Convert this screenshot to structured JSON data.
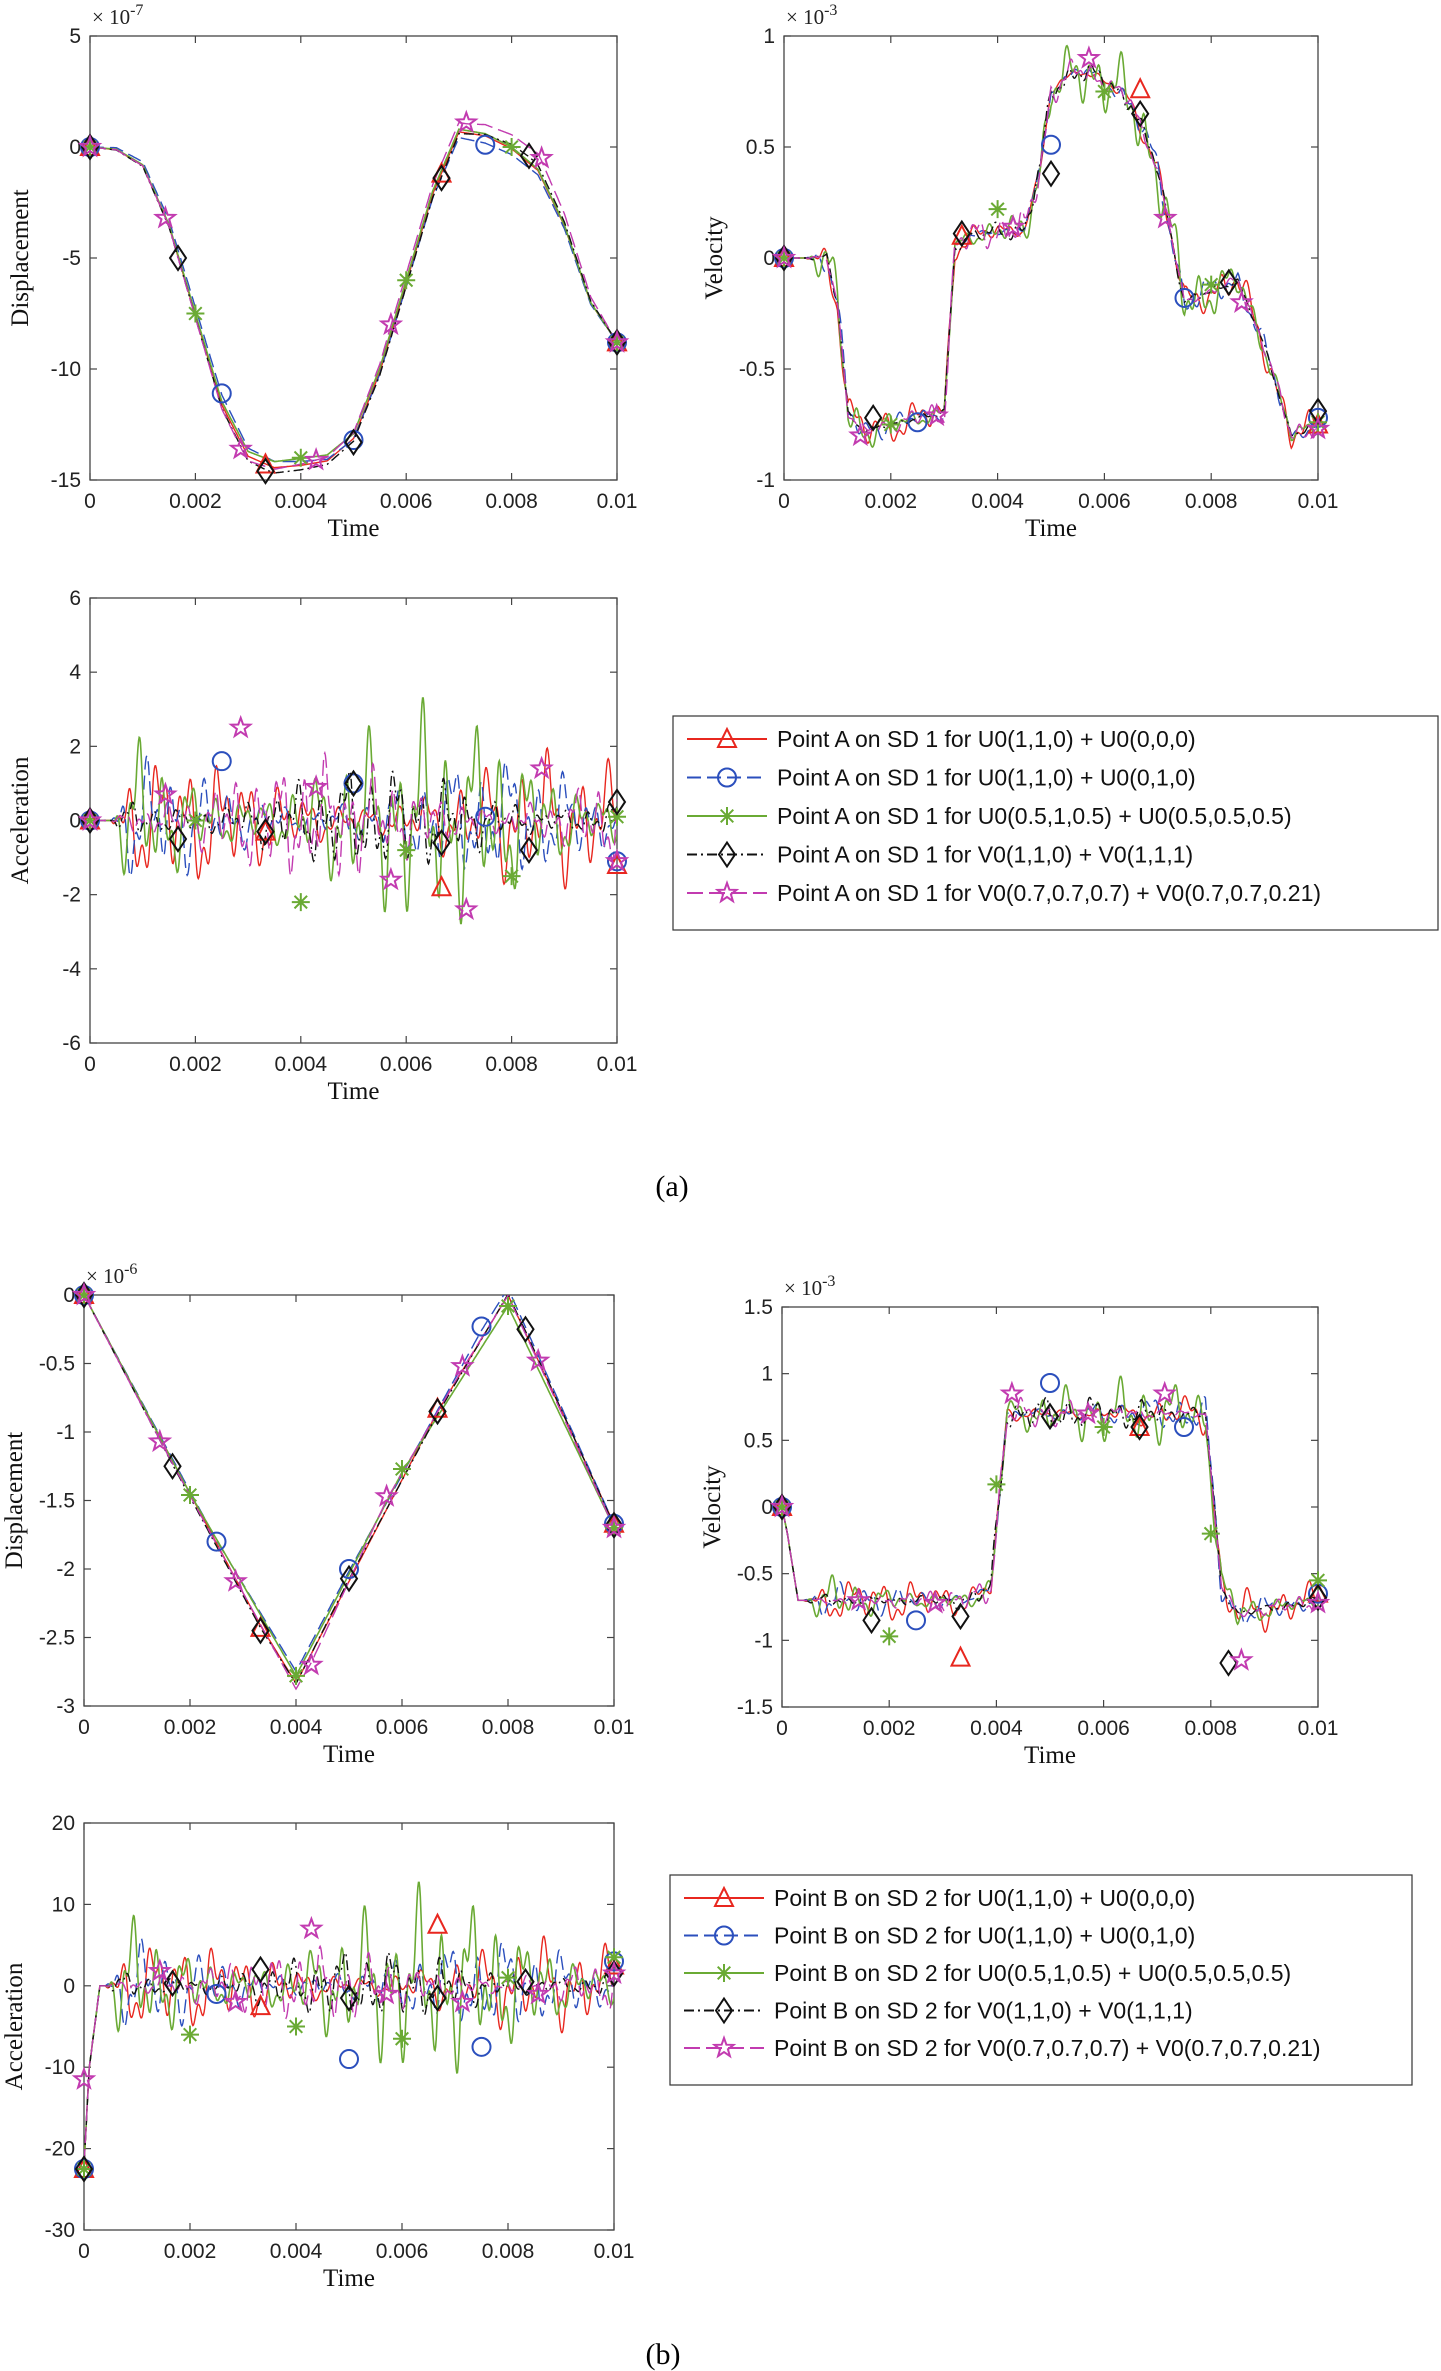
{
  "figure": {
    "caption_a": "(a)",
    "caption_b": "(b)"
  },
  "chart_data": [
    {
      "id": "a-disp",
      "type": "line",
      "panel": "a",
      "xlabel": "Time",
      "ylabel": "Displacement",
      "xlim": [
        0,
        0.01
      ],
      "ylim": [
        -15,
        5
      ],
      "xticks": [
        0,
        0.002,
        0.004,
        0.006,
        0.008,
        0.01
      ],
      "xtick_labels": [
        "0",
        "0.002",
        "0.004",
        "0.006",
        "0.008",
        "0.01"
      ],
      "yticks": [
        5,
        0,
        -5,
        -10,
        -15
      ],
      "ytick_labels": [
        "5",
        "0",
        "-5",
        "-10",
        "-15"
      ],
      "exponent": "× 10^-7",
      "base": {
        "x": [
          0,
          0.0005,
          0.001,
          0.0015,
          0.002,
          0.0025,
          0.003,
          0.0035,
          0.004,
          0.0045,
          0.005,
          0.0055,
          0.006,
          0.0065,
          0.007,
          0.0075,
          0.008,
          0.0085,
          0.009,
          0.0095,
          0.01
        ],
        "y": [
          0,
          -0.1,
          -0.8,
          -3.5,
          -7.5,
          -11.5,
          -13.8,
          -14.3,
          -14.2,
          -14.0,
          -13.0,
          -10.0,
          -6.0,
          -2.0,
          0.8,
          0.6,
          0,
          -1.0,
          -3.5,
          -7.0,
          -8.8
        ]
      },
      "noise": [
        0,
        0,
        0,
        0,
        0
      ],
      "series": [
        {
          "name": "U0(1,1,0)+U0(0,0,0)",
          "markers_x": [
            0,
            0.00333,
            0.00667,
            0.01
          ],
          "markers_y": [
            0,
            -14.3,
            -1.2,
            -8.8
          ]
        },
        {
          "name": "U0(1,1,0)+U0(0,1,0)",
          "markers_x": [
            0,
            0.0025,
            0.005,
            0.0075,
            0.01
          ],
          "markers_y": [
            0,
            -11.1,
            -13.2,
            0.1,
            -8.8
          ]
        },
        {
          "name": "U0(0.5,1,0.5)+U0(0.5,0.5,0.5)",
          "markers_x": [
            0,
            0.002,
            0.004,
            0.006,
            0.008,
            0.01
          ],
          "markers_y": [
            0,
            -7.5,
            -14.0,
            -6.0,
            0,
            -8.8
          ]
        },
        {
          "name": "V0(1,1,0)+V0(1,1,1)",
          "markers_x": [
            0,
            0.00167,
            0.00333,
            0.005,
            0.00667,
            0.00833,
            0.01
          ],
          "markers_y": [
            0,
            -5.0,
            -14.6,
            -13.3,
            -1.4,
            -0.4,
            -8.8
          ]
        },
        {
          "name": "V0(0.7,0.7,0.7)+V0(0.7,0.7,0.21)",
          "markers_x": [
            0,
            0.00143,
            0.00286,
            0.00429,
            0.00571,
            0.00714,
            0.00857,
            0.01
          ],
          "markers_y": [
            0,
            -3.2,
            -13.6,
            -14.1,
            -8.0,
            1.1,
            -0.5,
            -8.8
          ]
        }
      ]
    },
    {
      "id": "a-vel",
      "type": "line",
      "panel": "a",
      "xlabel": "Time",
      "ylabel": "Velocity",
      "xlim": [
        0,
        0.01
      ],
      "ylim": [
        -1,
        1
      ],
      "xticks": [
        0,
        0.002,
        0.004,
        0.006,
        0.008,
        0.01
      ],
      "xtick_labels": [
        "0",
        "0.002",
        "0.004",
        "0.006",
        "0.008",
        "0.01"
      ],
      "yticks": [
        1,
        0.5,
        0,
        -0.5,
        -1
      ],
      "ytick_labels": [
        "1",
        "0.5",
        "0",
        "-0.5",
        "-1"
      ],
      "exponent": "× 10^-3",
      "base": {
        "x": [
          0,
          0.0008,
          0.001,
          0.0012,
          0.0015,
          0.002,
          0.0025,
          0.003,
          0.0032,
          0.0035,
          0.004,
          0.0045,
          0.0048,
          0.005,
          0.0055,
          0.006,
          0.0065,
          0.007,
          0.0075,
          0.008,
          0.0085,
          0.009,
          0.0095,
          0.01
        ],
        "y": [
          0,
          0,
          -0.2,
          -0.7,
          -0.78,
          -0.75,
          -0.72,
          -0.7,
          0.05,
          0.1,
          0.12,
          0.13,
          0.4,
          0.75,
          0.85,
          0.8,
          0.7,
          0.4,
          -0.2,
          -0.15,
          -0.1,
          -0.4,
          -0.8,
          -0.75
        ]
      },
      "noise": [
        0.08,
        0.06,
        0.15,
        0.05,
        0.07
      ],
      "series": [
        {
          "name": "U0(1,1,0)+U0(0,0,0)",
          "markers_x": [
            0,
            0.00333,
            0.00667,
            0.01
          ],
          "markers_y": [
            0,
            0.1,
            0.76,
            -0.75
          ]
        },
        {
          "name": "U0(1,1,0)+U0(0,1,0)",
          "markers_x": [
            0,
            0.0025,
            0.005,
            0.0075,
            0.01
          ],
          "markers_y": [
            0,
            -0.74,
            0.51,
            -0.18,
            -0.72
          ]
        },
        {
          "name": "U0(0.5,1,0.5)+U0(0.5,0.5,0.5)",
          "markers_x": [
            0,
            0.002,
            0.004,
            0.006,
            0.008,
            0.01
          ],
          "markers_y": [
            0,
            -0.75,
            0.22,
            0.75,
            -0.12,
            -0.74
          ]
        },
        {
          "name": "V0(1,1,0)+V0(1,1,1)",
          "markers_x": [
            0,
            0.00167,
            0.00333,
            0.005,
            0.00667,
            0.00833,
            0.01
          ],
          "markers_y": [
            0,
            -0.72,
            0.11,
            0.38,
            0.65,
            -0.11,
            -0.69
          ]
        },
        {
          "name": "V0(0.7,0.7,0.7)+V0(0.7,0.7,0.21)",
          "markers_x": [
            0,
            0.00143,
            0.00286,
            0.00429,
            0.00571,
            0.00714,
            0.00857,
            0.01
          ],
          "markers_y": [
            0,
            -0.8,
            -0.71,
            0.14,
            0.9,
            0.18,
            -0.2,
            -0.77
          ]
        }
      ]
    },
    {
      "id": "a-acc",
      "type": "line",
      "panel": "a",
      "xlabel": "Time",
      "ylabel": "Acceleration",
      "xlim": [
        0,
        0.01
      ],
      "ylim": [
        -6,
        6
      ],
      "xticks": [
        0,
        0.002,
        0.004,
        0.006,
        0.008,
        0.01
      ],
      "xtick_labels": [
        "0",
        "0.002",
        "0.004",
        "0.006",
        "0.008",
        "0.01"
      ],
      "yticks": [
        6,
        4,
        2,
        0,
        -2,
        -4,
        -6
      ],
      "ytick_labels": [
        "6",
        "4",
        "2",
        "0",
        "-2",
        "-4",
        "-6"
      ],
      "exponent": "",
      "base": {
        "x": [
          0,
          0.0007,
          0.001,
          0.01
        ],
        "y": [
          0,
          0,
          0,
          0
        ]
      },
      "noise": [
        1.6,
        1.5,
        2.6,
        1.3,
        1.5
      ],
      "series": [
        {
          "name": "U0(1,1,0)+U0(0,0,0)",
          "markers_x": [
            0,
            0.00333,
            0.00667,
            0.01
          ],
          "markers_y": [
            0,
            -0.3,
            -1.8,
            -1.2
          ]
        },
        {
          "name": "U0(1,1,0)+U0(0,1,0)",
          "markers_x": [
            0,
            0.0025,
            0.005,
            0.0075,
            0.01
          ],
          "markers_y": [
            0,
            1.6,
            1.0,
            0.1,
            -1.1
          ]
        },
        {
          "name": "U0(0.5,1,0.5)+U0(0.5,0.5,0.5)",
          "markers_x": [
            0,
            0.002,
            0.004,
            0.006,
            0.008,
            0.01
          ],
          "markers_y": [
            0,
            0,
            -2.2,
            -0.8,
            -1.5,
            0.1
          ]
        },
        {
          "name": "V0(1,1,0)+V0(1,1,1)",
          "markers_x": [
            0,
            0.00167,
            0.00333,
            0.005,
            0.00667,
            0.00833,
            0.01
          ],
          "markers_y": [
            0,
            -0.5,
            -0.3,
            1.0,
            -0.6,
            -0.8,
            0.5
          ]
        },
        {
          "name": "V0(0.7,0.7,0.7)+V0(0.7,0.7,0.21)",
          "markers_x": [
            0,
            0.00143,
            0.00286,
            0.00429,
            0.00571,
            0.00714,
            0.00857,
            0.01
          ],
          "markers_y": [
            0,
            0.7,
            2.5,
            0.9,
            -1.6,
            -2.4,
            1.4,
            -1.1
          ]
        }
      ]
    },
    {
      "id": "b-disp",
      "type": "line",
      "panel": "b",
      "xlabel": "Time",
      "ylabel": "Displacement",
      "xlim": [
        0,
        0.01
      ],
      "ylim": [
        -3,
        0
      ],
      "xticks": [
        0,
        0.002,
        0.004,
        0.006,
        0.008,
        0.01
      ],
      "xtick_labels": [
        "0",
        "0.002",
        "0.004",
        "0.006",
        "0.008",
        "0.01"
      ],
      "yticks": [
        0,
        -0.5,
        -1,
        -1.5,
        -2,
        -2.5,
        -3
      ],
      "ytick_labels": [
        "0",
        "-0.5",
        "-1",
        "-1.5",
        "-2",
        "-2.5",
        "-3"
      ],
      "exponent": "× 10^-6",
      "base": {
        "x": [
          0,
          0.004,
          0.008,
          0.01
        ],
        "y": [
          0,
          -2.78,
          -0.08,
          -1.68
        ]
      },
      "noise": [
        0,
        0,
        0,
        0,
        0
      ],
      "series": [
        {
          "name": "U0(1,1,0)+U0(0,0,0)",
          "markers_x": [
            0,
            0.00333,
            0.00667,
            0.01
          ],
          "markers_y": [
            0,
            -2.43,
            -0.83,
            -1.67
          ]
        },
        {
          "name": "U0(1,1,0)+U0(0,1,0)",
          "markers_x": [
            0,
            0.0025,
            0.005,
            0.0075,
            0.01
          ],
          "markers_y": [
            0,
            -1.8,
            -2.0,
            -0.23,
            -1.67
          ]
        },
        {
          "name": "U0(0.5,1,0.5)+U0(0.5,0.5,0.5)",
          "markers_x": [
            0,
            0.002,
            0.004,
            0.006,
            0.008,
            0.01
          ],
          "markers_y": [
            0,
            -1.46,
            -2.78,
            -1.27,
            -0.08,
            -1.7
          ]
        },
        {
          "name": "V0(1,1,0)+V0(1,1,1)",
          "markers_x": [
            0,
            0.00167,
            0.00333,
            0.005,
            0.00667,
            0.00833,
            0.01
          ],
          "markers_y": [
            0,
            -1.25,
            -2.45,
            -2.07,
            -0.85,
            -0.25,
            -1.68
          ]
        },
        {
          "name": "V0(0.7,0.7,0.7)+V0(0.7,0.7,0.21)",
          "markers_x": [
            0,
            0.00143,
            0.00286,
            0.00429,
            0.00571,
            0.00714,
            0.00857,
            0.01
          ],
          "markers_y": [
            0,
            -1.07,
            -2.09,
            -2.7,
            -1.47,
            -0.52,
            -0.48,
            -1.7
          ]
        }
      ]
    },
    {
      "id": "b-vel",
      "type": "line",
      "panel": "b",
      "xlabel": "Time",
      "ylabel": "Velocity",
      "xlim": [
        0,
        0.01
      ],
      "ylim": [
        -1.5,
        1.5
      ],
      "xticks": [
        0,
        0.002,
        0.004,
        0.006,
        0.008,
        0.01
      ],
      "xtick_labels": [
        "0",
        "0.002",
        "0.004",
        "0.006",
        "0.008",
        "0.01"
      ],
      "yticks": [
        1.5,
        1,
        0.5,
        0,
        -0.5,
        -1,
        -1.5
      ],
      "ytick_labels": [
        "1.5",
        "1",
        "0.5",
        "0",
        "-0.5",
        "-1",
        "-1.5"
      ],
      "exponent": "× 10^-3",
      "base": {
        "x": [
          0,
          0.0001,
          0.0003,
          0.0035,
          0.0039,
          0.0042,
          0.0079,
          0.0082,
          0.0085,
          0.01
        ],
        "y": [
          0,
          -0.2,
          -0.7,
          -0.7,
          -0.6,
          0.7,
          0.7,
          -0.6,
          -0.8,
          -0.7
        ]
      },
      "noise": [
        0.15,
        0.12,
        0.22,
        0.12,
        0.1
      ],
      "series": [
        {
          "name": "U0(1,1,0)+U0(0,0,0)",
          "markers_x": [
            0,
            0.00333,
            0.00667,
            0.01
          ],
          "markers_y": [
            0,
            -1.13,
            0.6,
            -0.65
          ]
        },
        {
          "name": "U0(1,1,0)+U0(0,1,0)",
          "markers_x": [
            0,
            0.0025,
            0.005,
            0.0075,
            0.01
          ],
          "markers_y": [
            0,
            -0.85,
            0.93,
            0.6,
            -0.65
          ]
        },
        {
          "name": "U0(0.5,1,0.5)+U0(0.5,0.5,0.5)",
          "markers_x": [
            0,
            0.002,
            0.004,
            0.006,
            0.008,
            0.01
          ],
          "markers_y": [
            0,
            -0.97,
            0.17,
            0.6,
            -0.2,
            -0.55
          ]
        },
        {
          "name": "V0(1,1,0)+V0(1,1,1)",
          "markers_x": [
            0,
            0.00167,
            0.00333,
            0.005,
            0.00667,
            0.00833,
            0.01
          ],
          "markers_y": [
            0,
            -0.85,
            -0.82,
            0.68,
            0.6,
            -1.17,
            -0.68
          ]
        },
        {
          "name": "V0(0.7,0.7,0.7)+V0(0.7,0.7,0.21)",
          "markers_x": [
            0,
            0.00143,
            0.00286,
            0.00429,
            0.00571,
            0.00714,
            0.00857,
            0.01
          ],
          "markers_y": [
            0,
            -0.7,
            -0.72,
            0.85,
            0.7,
            0.85,
            -1.15,
            -0.72
          ]
        }
      ]
    },
    {
      "id": "b-acc",
      "type": "line",
      "panel": "b",
      "xlabel": "Time",
      "ylabel": "Acceleration",
      "xlim": [
        0,
        0.01
      ],
      "ylim": [
        -30,
        20
      ],
      "xticks": [
        0,
        0.002,
        0.004,
        0.006,
        0.008,
        0.01
      ],
      "xtick_labels": [
        "0",
        "0.002",
        "0.004",
        "0.006",
        "0.008",
        "0.01"
      ],
      "yticks": [
        20,
        10,
        0,
        -10,
        -20,
        -30
      ],
      "ytick_labels": [
        "20",
        "10",
        "0",
        "-10",
        "-20",
        "-30"
      ],
      "exponent": "",
      "base": {
        "x": [
          0,
          0.0001,
          0.0003,
          0.01
        ],
        "y": [
          -22,
          -10,
          0,
          0
        ]
      },
      "noise": [
        5,
        5,
        10,
        4,
        4
      ],
      "series": [
        {
          "name": "U0(1,1,0)+U0(0,0,0)",
          "markers_x": [
            0,
            0.00333,
            0.00667,
            0.01
          ],
          "markers_y": [
            -22.5,
            -2.5,
            7.5,
            2.5
          ]
        },
        {
          "name": "U0(1,1,0)+U0(0,1,0)",
          "markers_x": [
            0,
            0.0025,
            0.005,
            0.0075,
            0.01
          ],
          "markers_y": [
            -22.5,
            -1.0,
            -9.0,
            -7.5,
            3.0
          ]
        },
        {
          "name": "U0(0.5,1,0.5)+U0(0.5,0.5,0.5)",
          "markers_x": [
            0,
            0.002,
            0.004,
            0.006,
            0.008,
            0.01
          ],
          "markers_y": [
            -22.5,
            -6.0,
            -5.0,
            -6.5,
            1.0,
            3.5
          ]
        },
        {
          "name": "V0(1,1,0)+V0(1,1,1)",
          "markers_x": [
            0,
            0.00167,
            0.00333,
            0.005,
            0.00667,
            0.00833,
            0.01
          ],
          "markers_y": [
            -22.5,
            0.3,
            2.0,
            -1.5,
            -1.5,
            0.5,
            1.5
          ]
        },
        {
          "name": "V0(0.7,0.7,0.7)+V0(0.7,0.7,0.21)",
          "markers_x": [
            0,
            0.00143,
            0.00286,
            0.00429,
            0.00571,
            0.00714,
            0.00857,
            0.01
          ],
          "markers_y": [
            -11.5,
            1.8,
            -2.0,
            7.0,
            -1.0,
            -2.0,
            -1.0,
            1.5
          ]
        }
      ]
    }
  ],
  "legend_a": {
    "entries": [
      "Point A on SD 1 for U0(1,1,0) + U0(0,0,0)",
      "Point A on SD 1 for U0(1,1,0) + U0(0,1,0)",
      "Point A on SD 1 for U0(0.5,1,0.5) + U0(0.5,0.5,0.5)",
      "Point A on SD 1 for V0(1,1,0) + V0(1,1,1)",
      "Point A on SD 1 for V0(0.7,0.7,0.7) + V0(0.7,0.7,0.21)"
    ]
  },
  "legend_b": {
    "entries": [
      "Point B on SD 2 for U0(1,1,0) + U0(0,0,0)",
      "Point B on SD 2 for U0(1,1,0) + U0(0,1,0)",
      "Point B on SD 2 for U0(0.5,1,0.5) + U0(0.5,0.5,0.5)",
      "Point B on SD 2 for V0(1,1,0) + V0(1,1,1)",
      "Point B on SD 2 for V0(0.7,0.7,0.7) + V0(0.7,0.7,0.21)"
    ]
  },
  "style": {
    "series_colors": [
      "#e8271f",
      "#2b4fbd",
      "#6aaa34",
      "#111111",
      "#c23bb0"
    ],
    "series_dash": [
      "",
      "14 6",
      "",
      "10 4 2 4",
      "16 6"
    ],
    "series_markers": [
      "triangle",
      "circle",
      "asterisk",
      "diamond",
      "star"
    ]
  }
}
